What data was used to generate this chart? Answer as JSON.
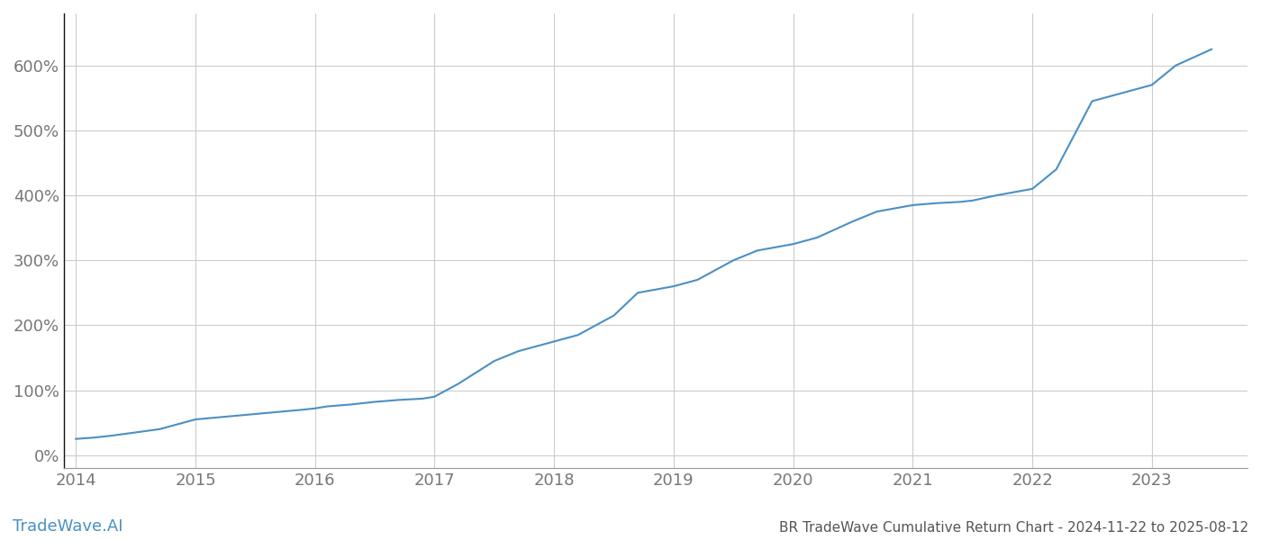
{
  "title": "BR TradeWave Cumulative Return Chart - 2024-11-22 to 2025-08-12",
  "watermark": "TradeWave.AI",
  "line_color": "#4a90c4",
  "background_color": "#ffffff",
  "grid_color": "#cccccc",
  "x_tick_labels": [
    "2014",
    "2015",
    "2016",
    "2017",
    "2018",
    "2019",
    "2020",
    "2021",
    "2022",
    "2023"
  ],
  "y_tick_labels": [
    "0%",
    "100%",
    "200%",
    "300%",
    "400%",
    "500%",
    "600%"
  ],
  "ylim": [
    -20,
    680
  ],
  "xlim": [
    -0.1,
    9.8
  ],
  "data_x": [
    0.0,
    0.15,
    0.3,
    0.5,
    0.7,
    1.0,
    1.3,
    1.6,
    1.9,
    2.0,
    2.1,
    2.3,
    2.5,
    2.7,
    2.9,
    3.0,
    3.2,
    3.5,
    3.7,
    4.0,
    4.2,
    4.5,
    4.7,
    5.0,
    5.2,
    5.5,
    5.7,
    6.0,
    6.2,
    6.5,
    6.7,
    7.0,
    7.2,
    7.4,
    7.5,
    7.7,
    8.0,
    8.2,
    8.5,
    8.7,
    9.0,
    9.2,
    9.5
  ],
  "data_y": [
    25,
    27,
    30,
    35,
    40,
    55,
    60,
    65,
    70,
    72,
    75,
    78,
    82,
    85,
    87,
    90,
    110,
    145,
    160,
    175,
    185,
    215,
    250,
    260,
    270,
    300,
    315,
    325,
    335,
    360,
    375,
    385,
    388,
    390,
    392,
    400,
    410,
    440,
    545,
    555,
    570,
    600,
    625
  ],
  "line_width": 1.5,
  "title_fontsize": 11,
  "tick_fontsize": 13,
  "watermark_fontsize": 13,
  "watermark_color": "#4a90c4",
  "title_color": "#555555",
  "tick_color": "#777777",
  "spine_color": "#999999",
  "left_spine_color": "#111111"
}
